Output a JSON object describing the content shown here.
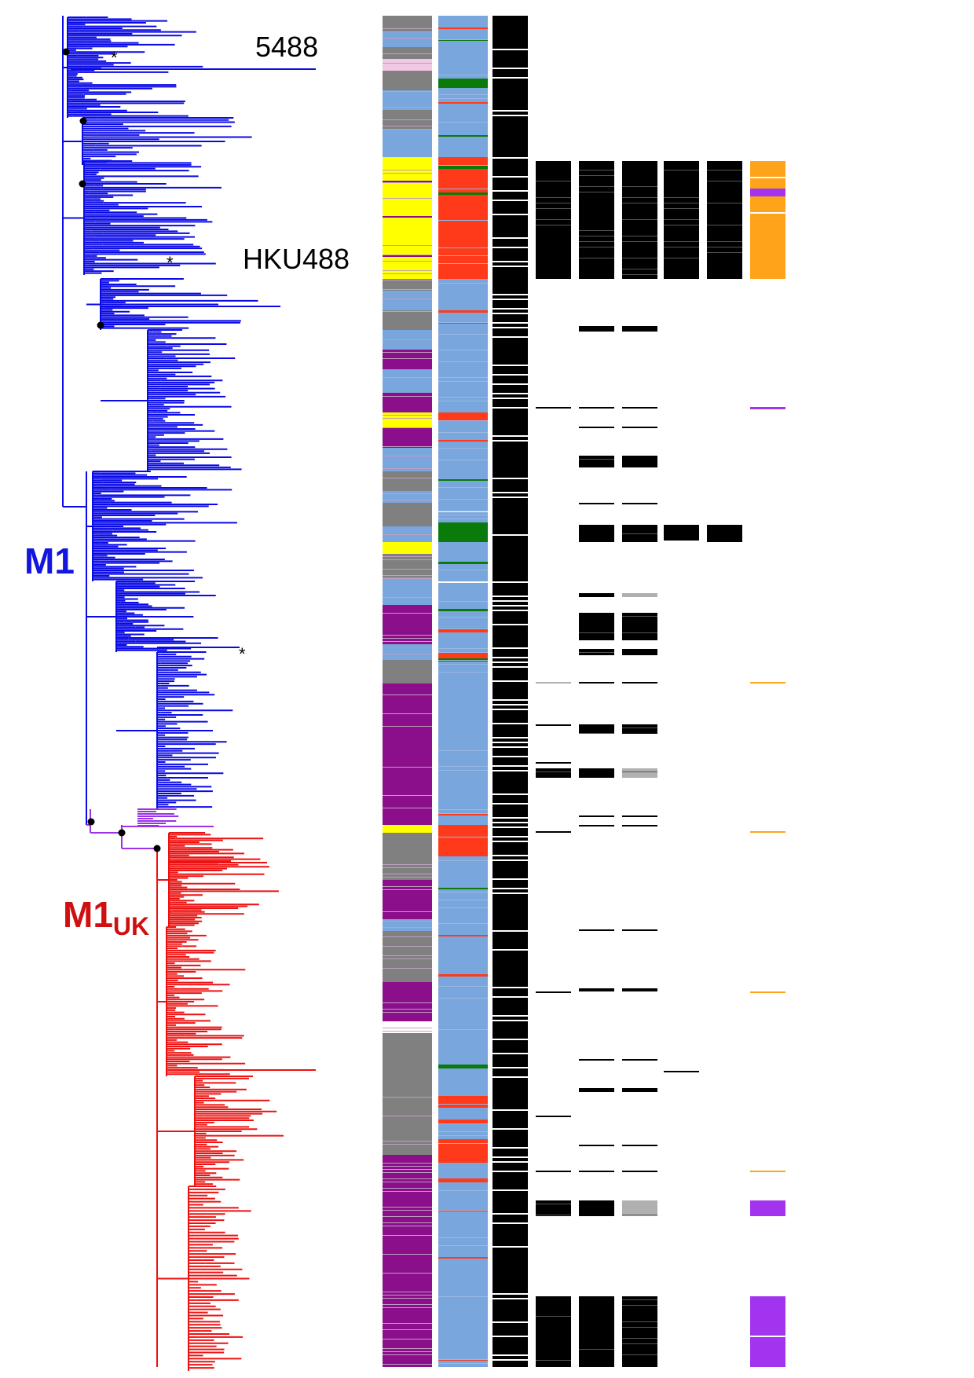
{
  "labels": {
    "strain_top": "5488",
    "strain_mid": "HKU488",
    "clade_m1": "M1",
    "clade_m1uk_main": "M1",
    "clade_m1uk_sub": "UK",
    "star": "*"
  },
  "colors": {
    "m1_branch": "#0a0ae6",
    "m1uk_branch": "#ee1111",
    "intermediate_branch": "#9933e6",
    "node": "#000000",
    "label_m1": "#1515e0",
    "label_m1uk": "#d01010",
    "yellow": "#ffff00",
    "grey": "#808080",
    "purple": "#8b0e8b",
    "lightblue": "#79a6dc",
    "pink": "#f0c8e6",
    "red": "#ff3a1a",
    "green": "#0a7a0a",
    "black": "#000000",
    "white": "#ffffff",
    "lightgrey": "#b0b0b0",
    "orange": "#ffa41a",
    "violet": "#a234f0"
  }
}
